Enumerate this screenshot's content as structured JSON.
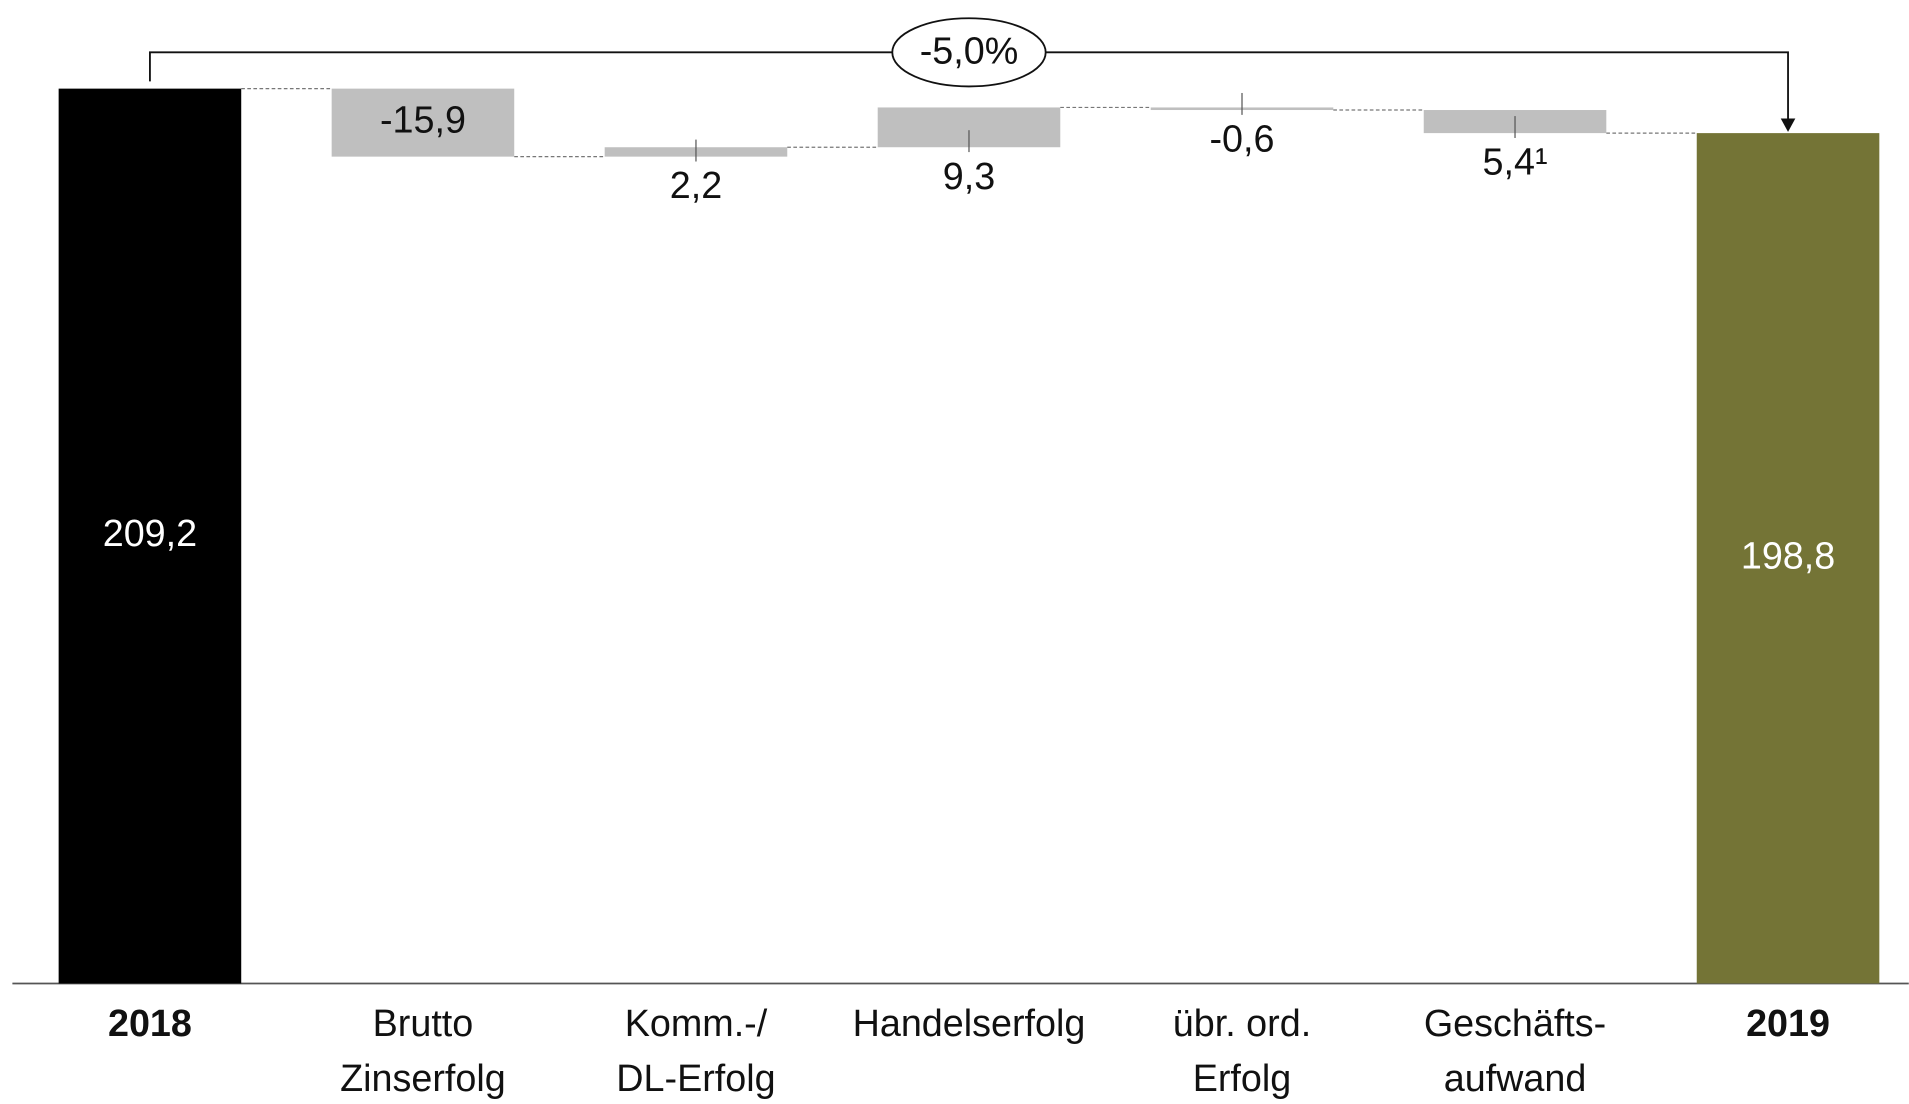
{
  "chart_data": {
    "type": "waterfall",
    "categories": [
      "2018",
      "Brutto\nZinserfolg",
      "Komm.-/\nDL-Erfolg",
      "Handelserfolg",
      "übr. ord.\nErfolg",
      "Geschäfts-\naufwand",
      "2019"
    ],
    "measure": [
      "absolute",
      "relative",
      "relative",
      "relative",
      "relative",
      "relative",
      "total"
    ],
    "values": [
      209.2,
      -15.9,
      2.2,
      9.3,
      -0.6,
      -5.4,
      198.8
    ],
    "value_labels": [
      "209,2",
      "-15,9",
      "2,2",
      "9,3",
      "-0,6",
      "5,4¹",
      "198,8"
    ],
    "colors": [
      "#000000",
      "#bfbfbf",
      "#bfbfbf",
      "#bfbfbf",
      "#bfbfbf",
      "#bfbfbf",
      "#747436"
    ],
    "annotation": "-5,0%",
    "ylim": [
      0,
      210
    ]
  }
}
